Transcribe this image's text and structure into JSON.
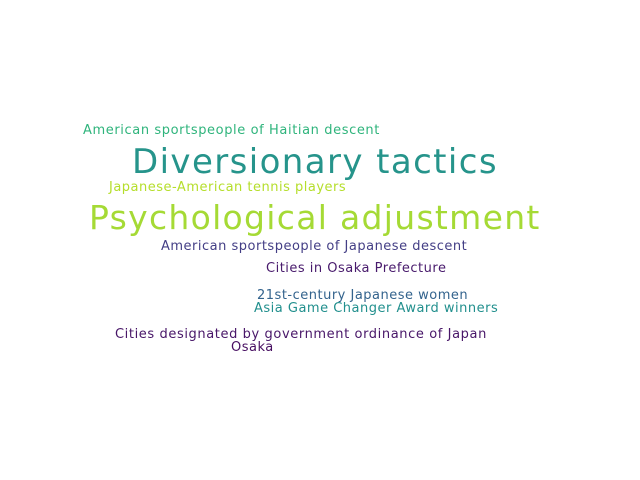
{
  "word_cloud": {
    "words": [
      {
        "text": "American sportspeople of Haitian descent",
        "color": "#2fb47c"
      },
      {
        "text": "Diversionary tactics",
        "color": "#26948b"
      },
      {
        "text": "Japanese-American tennis players",
        "color": "#b5de2b"
      },
      {
        "text": "Psychological adjustment",
        "color": "#a5da35"
      },
      {
        "text": "American sportspeople of Japanese descent",
        "color": "#433e85"
      },
      {
        "text": "Cities in Osaka Prefecture",
        "color": "#481a6c"
      },
      {
        "text": "21st-century Japanese women",
        "color": "#33638d"
      },
      {
        "text": "Asia Game Changer Award winners",
        "color": "#218f8d"
      },
      {
        "text": "Cities designated by government ordinance of Japan",
        "color": "#481668"
      },
      {
        "text": "Osaka",
        "color": "#470e61"
      }
    ]
  }
}
